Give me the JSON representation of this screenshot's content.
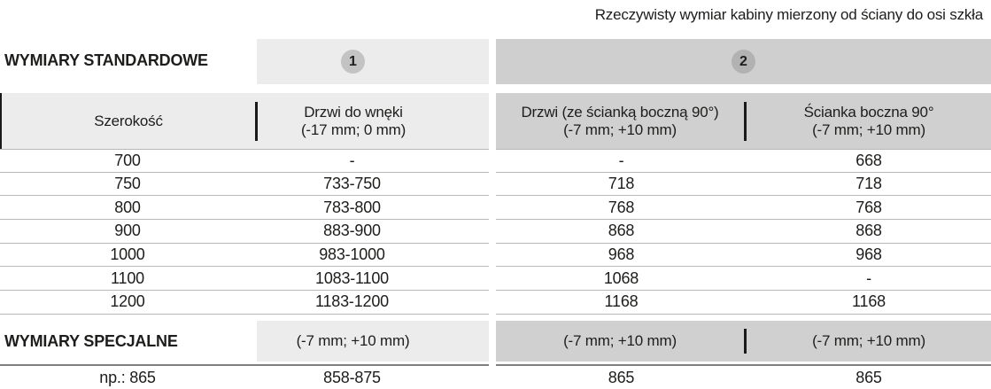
{
  "caption": "Rzeczywisty wymiar kabiny mierzony od ściany do osi szkła",
  "standard": {
    "title": "WYMIARY STANDARDOWE",
    "badge1": "1",
    "badge2": "2"
  },
  "columns": {
    "width_label": "Szerokość",
    "door_niche_name": "Drzwi do wnęki",
    "door_niche_tolerance": "(-17 mm; 0 mm)",
    "door_side_name": "Drzwi (ze ścianką boczną 90°)",
    "door_side_tolerance": "(-7 mm; +10 mm)",
    "side_panel_name": "Ścianka boczna 90°",
    "side_panel_tolerance": "(-7 mm; +10 mm)"
  },
  "rows": [
    {
      "width": "700",
      "door_niche": "-",
      "door_side": "-",
      "side_panel": "668"
    },
    {
      "width": "750",
      "door_niche": "733-750",
      "door_side": "718",
      "side_panel": "718"
    },
    {
      "width": "800",
      "door_niche": "783-800",
      "door_side": "768",
      "side_panel": "768"
    },
    {
      "width": "900",
      "door_niche": "883-900",
      "door_side": "868",
      "side_panel": "868"
    },
    {
      "width": "1000",
      "door_niche": "983-1000",
      "door_side": "968",
      "side_panel": "968"
    },
    {
      "width": "1100",
      "door_niche": "1083-1100",
      "door_side": "1068",
      "side_panel": "-"
    },
    {
      "width": "1200",
      "door_niche": "1183-1200",
      "door_side": "1168",
      "side_panel": "1168"
    }
  ],
  "special": {
    "title": "WYMIARY SPECJALNE",
    "door_niche_tolerance": "(-7 mm; +10 mm)",
    "door_side_tolerance": "(-7 mm; +10 mm)",
    "side_panel_tolerance": "(-7 mm; +10 mm)",
    "example": {
      "width": "np.: 865",
      "door_niche": "858-875",
      "door_side": "865",
      "side_panel": "865"
    }
  },
  "colors": {
    "band_light": "#ececec",
    "band_dark": "#d0d0d0",
    "badge1_circle": "#c3c3c3",
    "badge2_circle": "#b2b2b2",
    "row_divider": "#b8b8b8",
    "section_divider": "#7f7f7f",
    "text": "#1d1d1b"
  }
}
